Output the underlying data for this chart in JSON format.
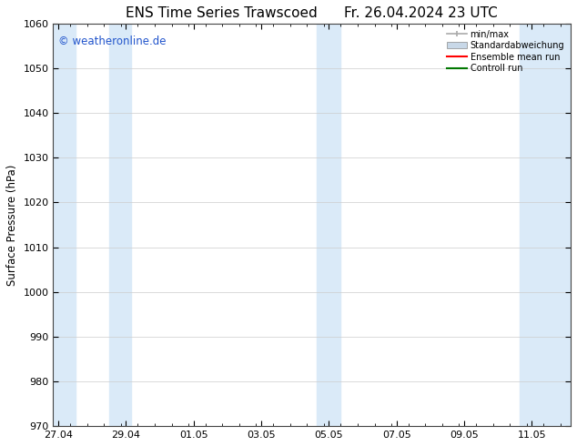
{
  "title_left": "ENS Time Series Trawscoed",
  "title_right": "Fr. 26.04.2024 23 UTC",
  "ylabel": "Surface Pressure (hPa)",
  "ylim": [
    970,
    1060
  ],
  "yticks": [
    970,
    980,
    990,
    1000,
    1010,
    1020,
    1030,
    1040,
    1050,
    1060
  ],
  "xtick_labels": [
    "27.04",
    "29.04",
    "01.05",
    "03.05",
    "05.05",
    "07.05",
    "09.05",
    "11.05"
  ],
  "xtick_positions": [
    0,
    2,
    4,
    6,
    8,
    10,
    12,
    14
  ],
  "xmin": -0.15,
  "xmax": 15.15,
  "shaded_bands": [
    {
      "xmin": -0.15,
      "xmax": 0.5
    },
    {
      "xmin": 1.5,
      "xmax": 2.15
    },
    {
      "xmin": 7.65,
      "xmax": 8.35
    },
    {
      "xmin": 13.65,
      "xmax": 15.15
    }
  ],
  "band_color": "#daeaf8",
  "background_color": "#ffffff",
  "grid_color": "#cccccc",
  "watermark": "© weatheronline.de",
  "watermark_color": "#2255cc",
  "legend_labels": [
    "min/max",
    "Standardabweichung",
    "Ensemble mean run",
    "Controll run"
  ],
  "legend_colors": [
    "#aaaaaa",
    "#c8d8e8",
    "#ff0000",
    "#007700"
  ],
  "title_fontsize": 11,
  "axis_fontsize": 8.5,
  "tick_fontsize": 8
}
